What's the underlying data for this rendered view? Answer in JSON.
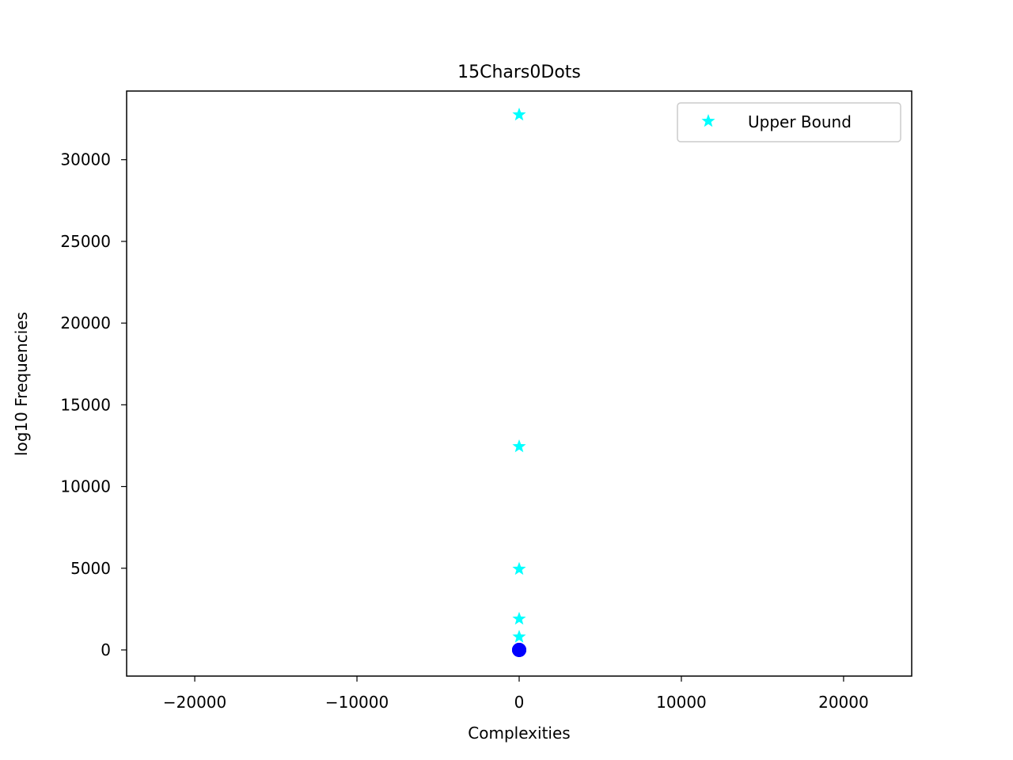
{
  "chart_data": {
    "type": "scatter",
    "title": "15Chars0Dots",
    "xlabel": "Complexities",
    "ylabel": "log10 Frequencies",
    "xlim": [
      -24200,
      24200
    ],
    "ylim": [
      -1600,
      34200
    ],
    "xticks": [
      -20000,
      -10000,
      0,
      10000,
      20000
    ],
    "xtick_labels": [
      "−20000",
      "−10000",
      "0",
      "10000",
      "20000"
    ],
    "yticks": [
      0,
      5000,
      10000,
      15000,
      20000,
      25000,
      30000
    ],
    "ytick_labels": [
      "0",
      "5000",
      "10000",
      "15000",
      "20000",
      "25000",
      "30000"
    ],
    "grid": false,
    "legend_position": "top-right",
    "series": [
      {
        "name": "Upper Bound",
        "marker": "star",
        "color": "#00ffff",
        "x": [
          0,
          0,
          0,
          0,
          0
        ],
        "y": [
          32750,
          12450,
          4950,
          1900,
          800
        ]
      },
      {
        "marker": "circle",
        "color": "#0000ff",
        "x": [
          0,
          0,
          0
        ],
        "y": [
          0,
          0,
          0
        ]
      }
    ]
  }
}
